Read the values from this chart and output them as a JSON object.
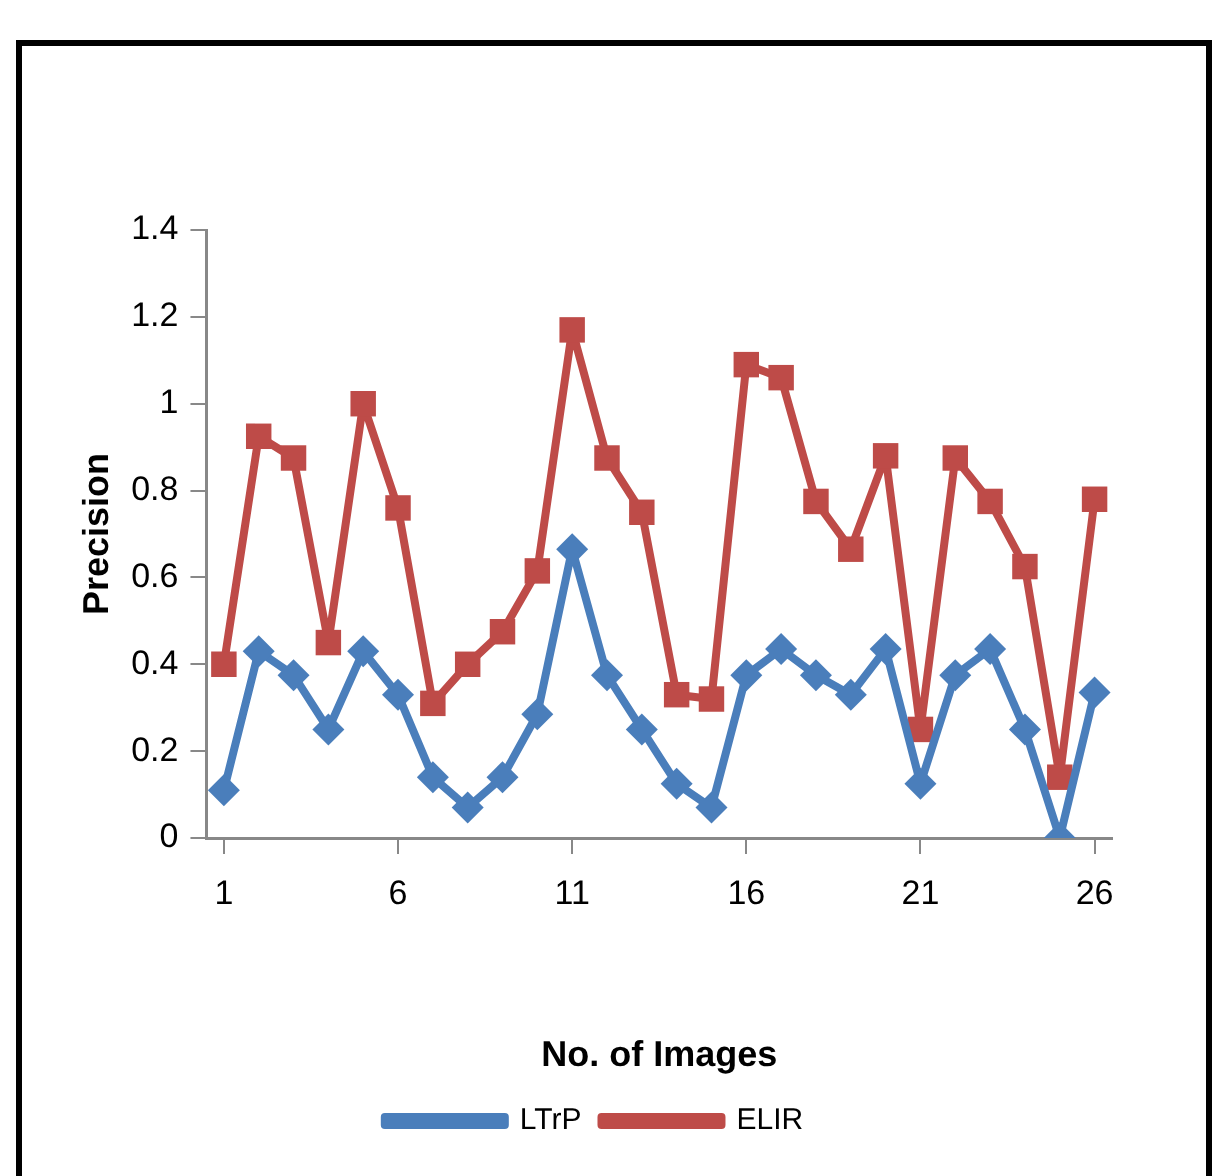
{
  "chart_data": {
    "type": "line",
    "xlabel": "No. of Images",
    "ylabel": "Precision",
    "x": [
      1,
      2,
      3,
      4,
      5,
      6,
      7,
      8,
      9,
      10,
      11,
      12,
      13,
      14,
      15,
      16,
      17,
      18,
      19,
      20,
      21,
      22,
      23,
      24,
      25,
      26
    ],
    "xlim": [
      0.5,
      26.5
    ],
    "xticks": [
      1,
      6,
      11,
      16,
      21,
      26
    ],
    "series": [
      {
        "name": "LTrP",
        "color": "#4a7ebb",
        "marker": "diamond",
        "values": [
          0.11,
          0.43,
          0.375,
          0.25,
          0.43,
          0.33,
          0.14,
          0.07,
          0.14,
          0.285,
          0.665,
          0.375,
          0.25,
          0.125,
          0.07,
          0.375,
          0.435,
          0.375,
          0.33,
          0.435,
          0.125,
          0.375,
          0.435,
          0.25,
          0,
          0.335
        ]
      },
      {
        "name": "ELIR",
        "color": "#be4b48",
        "marker": "square",
        "values": [
          0.4,
          0.925,
          0.875,
          0.45,
          1.0,
          0.76,
          0.31,
          0.4,
          0.475,
          0.615,
          1.17,
          0.875,
          0.75,
          0.33,
          0.32,
          1.09,
          1.06,
          0.775,
          0.665,
          0.88,
          0.25,
          0.875,
          0.775,
          0.625,
          0.14,
          0.78
        ]
      }
    ],
    "ylim": [
      0,
      1.4
    ],
    "yticks": [
      0,
      0.2,
      0.4,
      0.6,
      0.8,
      1,
      1.2,
      1.4
    ],
    "grid": false,
    "legend": "bottom",
    "line_style": "solid"
  }
}
